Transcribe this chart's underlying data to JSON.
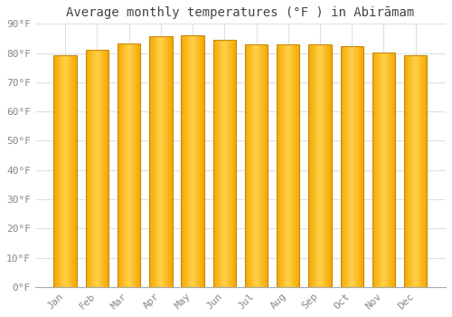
{
  "title": "Average monthly temperatures (°F ) in Abirāmam",
  "months": [
    "Jan",
    "Feb",
    "Mar",
    "Apr",
    "May",
    "Jun",
    "Jul",
    "Aug",
    "Sep",
    "Oct",
    "Nov",
    "Dec"
  ],
  "values": [
    79.2,
    81.1,
    83.3,
    85.8,
    86.0,
    84.4,
    83.1,
    83.0,
    83.1,
    82.2,
    80.3,
    79.2
  ],
  "bar_color_center": "#FFD04A",
  "bar_color_edge": "#F5A800",
  "bar_outline_color": "#C8880A",
  "background_color": "#ffffff",
  "grid_color": "#e0e0e0",
  "ylim": [
    0,
    90
  ],
  "ytick_step": 10,
  "title_fontsize": 10,
  "tick_fontsize": 8
}
